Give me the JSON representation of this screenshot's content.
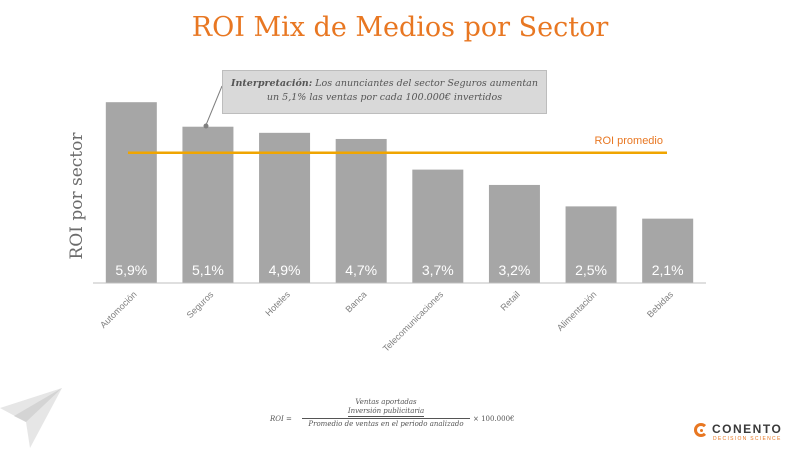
{
  "chart_data": {
    "type": "bar",
    "title": "ROI Mix de Medios por Sector",
    "ylabel": "ROI por sector",
    "xlabel": "",
    "categories": [
      "Automoción",
      "Seguros",
      "Hoteles",
      "Banca",
      "Telecomunicaciones",
      "Retail",
      "Alimentación",
      "Bebidas"
    ],
    "values": [
      5.9,
      5.1,
      4.9,
      4.7,
      3.7,
      3.2,
      2.5,
      2.1
    ],
    "data_labels": [
      "5,9%",
      "5,1%",
      "4,9%",
      "4,7%",
      "3,7%",
      "3,2%",
      "2,5%",
      "2,1%"
    ],
    "ylim": [
      0,
      6.2
    ],
    "reference_line": {
      "label": "ROI promedio",
      "value": 4.25,
      "color": "#f0a500"
    },
    "bar_color": "#a6a6a6",
    "grid": false,
    "legend": "none"
  },
  "callout": {
    "label": "Interpretación:",
    "text": "Los anunciantes  del sector Seguros aumentan un 5,1% las ventas por cada 100.000€ invertidos"
  },
  "formula": {
    "lhs": "ROI =",
    "numerator_top": "Ventas aportadas",
    "numerator_bottom": "Inversión publicitaria",
    "denominator": "Promedio de ventas  en el periodo analizado",
    "rhs": "× 100.000€"
  },
  "logo": {
    "name": "CONENTO",
    "subtitle": "DECISION SCIENCE"
  },
  "colors": {
    "accent": "#e87722",
    "text": "#555555",
    "axis": "#bfbfbf"
  }
}
